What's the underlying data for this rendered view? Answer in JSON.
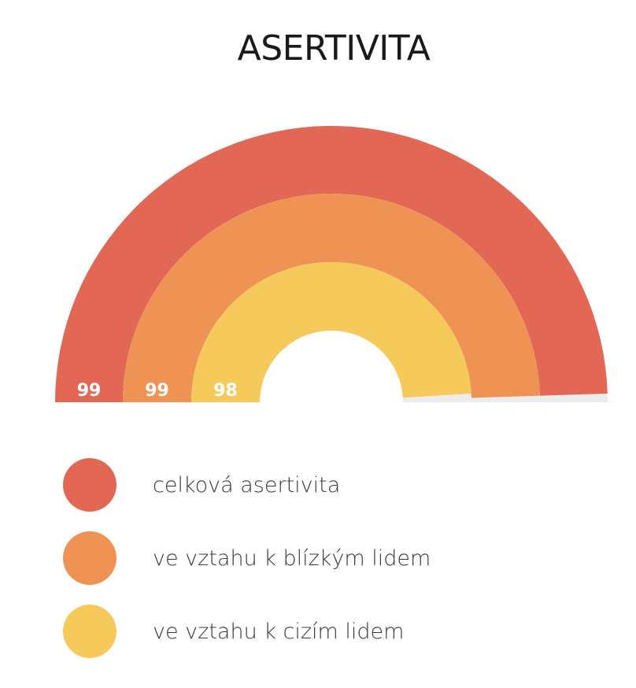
{
  "chart_data": {
    "type": "radial-bar",
    "title": "ASERTIVITA",
    "max": 100,
    "series": [
      {
        "name": "celková asertivita",
        "value": 99,
        "color": "#e26855"
      },
      {
        "name": "ve vztahu k blízkým lidem",
        "value": 99,
        "color": "#ee9354"
      },
      {
        "name": "ve vztahu k cizím lidem",
        "value": 98,
        "color": "#f5ca5a"
      }
    ],
    "track_color": "#ececec",
    "label_color": "#ffffff"
  }
}
